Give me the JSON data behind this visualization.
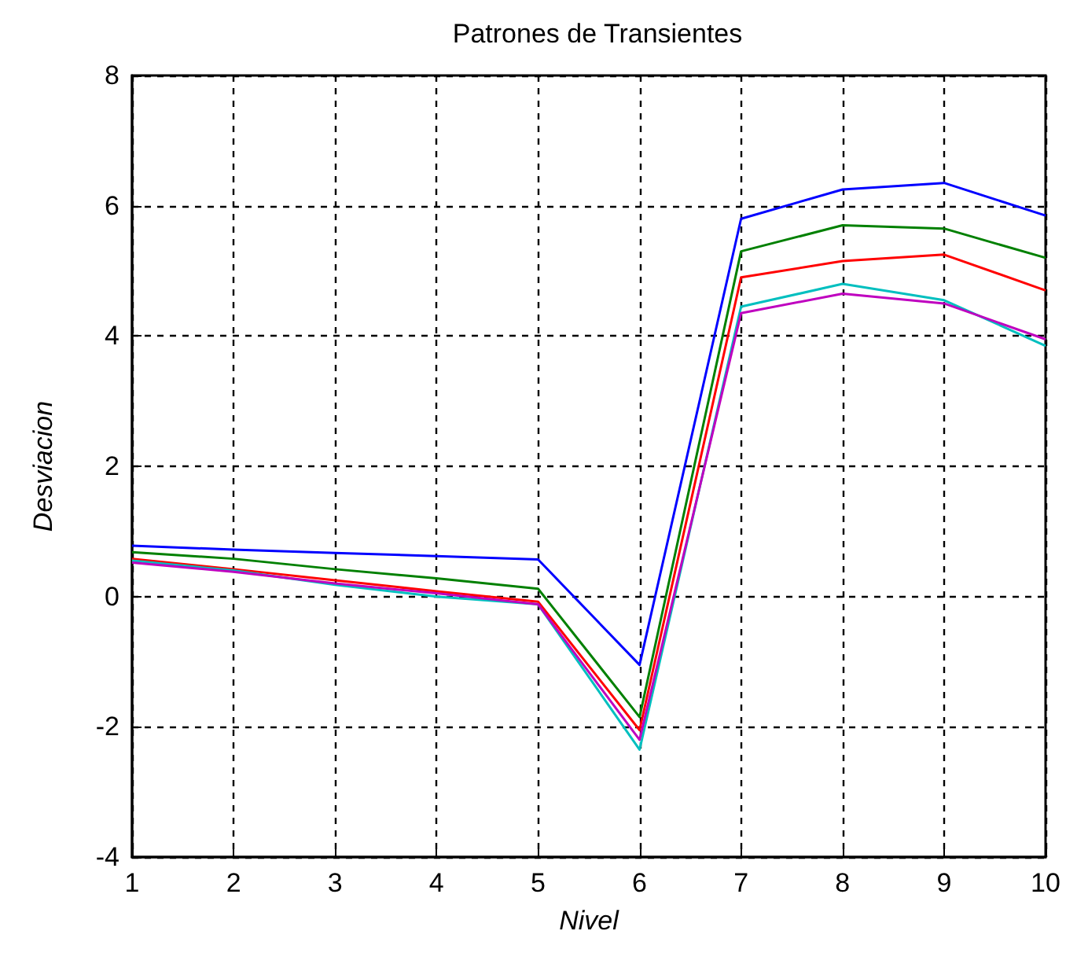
{
  "chart_data": {
    "type": "line",
    "title": "Patrones de Transientes",
    "xlabel": "Nivel",
    "ylabel": "Desviacion",
    "x": [
      1,
      2,
      3,
      4,
      5,
      6,
      7,
      8,
      9,
      10
    ],
    "series": [
      {
        "color": "#0000ff",
        "values": [
          0.78,
          0.72,
          0.67,
          0.62,
          0.57,
          -1.05,
          5.8,
          6.25,
          6.35,
          5.85
        ]
      },
      {
        "color": "#008000",
        "values": [
          0.68,
          0.58,
          0.42,
          0.28,
          0.12,
          -1.85,
          5.3,
          5.7,
          5.65,
          5.2
        ]
      },
      {
        "color": "#ff0000",
        "values": [
          0.58,
          0.42,
          0.25,
          0.08,
          -0.08,
          -2.05,
          4.9,
          5.15,
          5.25,
          4.7
        ]
      },
      {
        "color": "#00bfbf",
        "values": [
          0.55,
          0.4,
          0.18,
          0.0,
          -0.12,
          -2.35,
          4.45,
          4.8,
          4.55,
          3.85
        ]
      },
      {
        "color": "#bf00bf",
        "values": [
          0.52,
          0.38,
          0.2,
          0.05,
          -0.12,
          -2.2,
          4.35,
          4.65,
          4.5,
          3.95
        ]
      }
    ],
    "xlim": [
      1,
      10
    ],
    "xticks": [
      1,
      2,
      3,
      4,
      5,
      6,
      7,
      8,
      9,
      10
    ],
    "ylim": [
      -4,
      8
    ],
    "yticks": [
      -4,
      -2,
      0,
      2,
      4,
      6,
      8
    ],
    "grid": true,
    "marker": "none",
    "line_style": "solid"
  }
}
